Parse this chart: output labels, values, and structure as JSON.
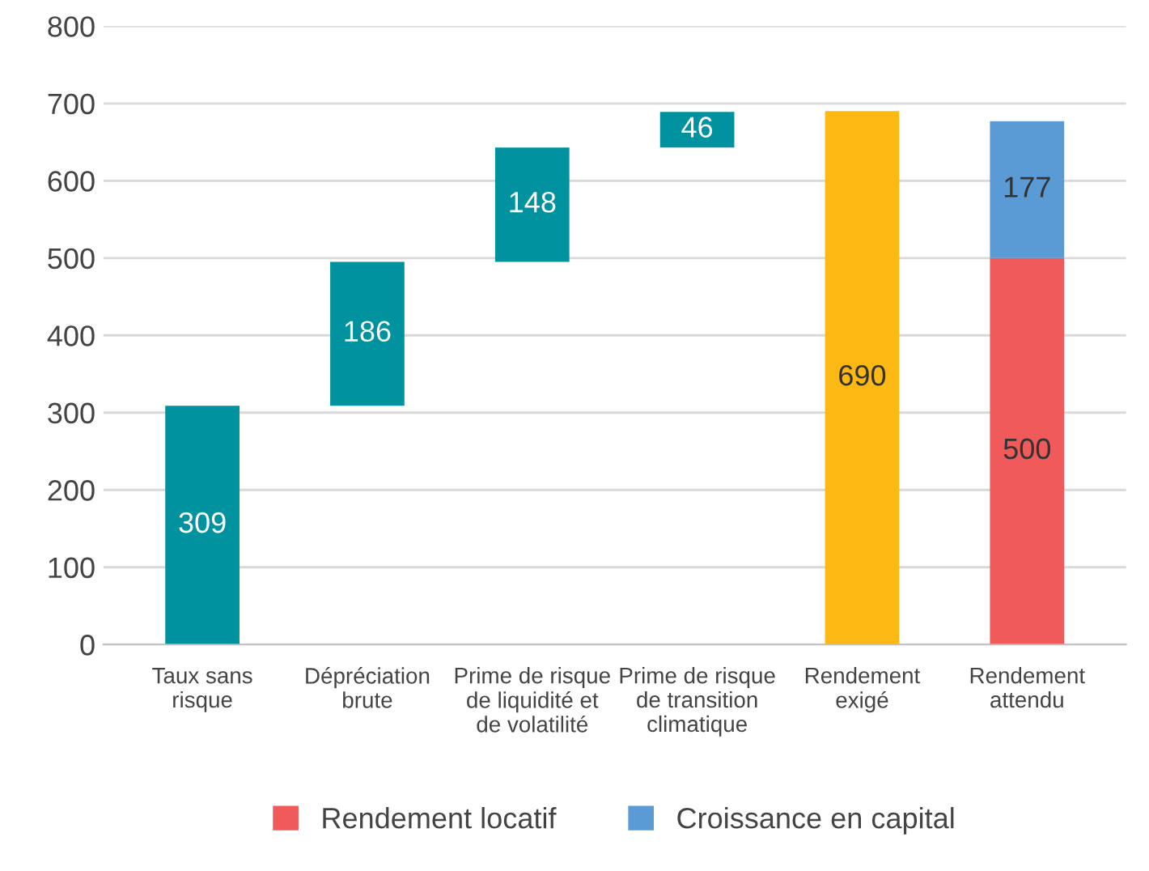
{
  "chart_data": {
    "type": "bar",
    "categories": [
      "Taux sans\nrisque",
      "Dépréciation\nbrute",
      "Prime de risque\nde liquidité et\nde volatilité",
      "Prime de risque\nde transition\nclimatique",
      "Rendement\nexigé",
      "Rendement\nattendu"
    ],
    "series": [
      {
        "color": "#00929f",
        "values": [
          309,
          186,
          148,
          46,
          null,
          null
        ],
        "base": [
          0,
          309,
          495,
          643,
          null,
          null
        ]
      },
      {
        "color": "#fdb913",
        "values": [
          null,
          null,
          null,
          null,
          690,
          null
        ]
      },
      {
        "name": "Rendement locatif",
        "color": "#f05a5a",
        "values": [
          null,
          null,
          null,
          null,
          null,
          500
        ]
      },
      {
        "name": "Croissance en capital",
        "color": "#5b9bd5",
        "values": [
          null,
          null,
          null,
          null,
          null,
          177
        ],
        "base": [
          null,
          null,
          null,
          null,
          null,
          500
        ]
      }
    ],
    "ylim": [
      0,
      800
    ],
    "yticks": [
      0,
      100,
      200,
      300,
      400,
      500,
      600,
      700,
      800
    ],
    "grid": "y",
    "data_labels": true,
    "legend": "bottom"
  }
}
